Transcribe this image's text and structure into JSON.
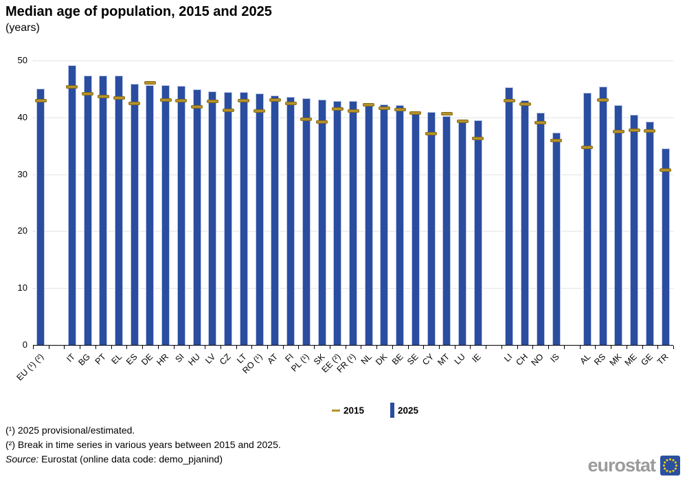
{
  "header": {
    "title": "Median age of population, 2015 and 2025",
    "subtitle": "(years)"
  },
  "legend": {
    "item_2015": "2015",
    "item_2025": "2025"
  },
  "footnotes": {
    "note1": "(¹) 2025 provisional/estimated.",
    "note2": "(²) Break in time series in various years between 2015 and 2025.",
    "source_label": "Source:",
    "source_text": " Eurostat (online data code: demo_pjanind)"
  },
  "logo": {
    "text": "eurostat"
  },
  "colors": {
    "bar": "#2a4da0",
    "bar_edge": "#bcc7e6",
    "marker": "#b5922b",
    "marker_edge": "#85691a",
    "grid": "#c9c9c9",
    "axis": "#000000",
    "logo_text": "#9b9b9d",
    "flag_blue": "#2b50a0",
    "flag_star": "#ffd200"
  },
  "chart_data": {
    "type": "bar",
    "title": "Median age of population, 2015 and 2025",
    "unit": "years",
    "xlabel": "",
    "ylabel": "",
    "ylim": [
      0,
      50
    ],
    "yticks": [
      0,
      10,
      20,
      30,
      40,
      50
    ],
    "grid": "horizontal-dotted",
    "legend_position": "bottom-center",
    "series": [
      {
        "name": "2015",
        "style": "gold-dash-marker"
      },
      {
        "name": "2025",
        "style": "blue-column"
      }
    ],
    "categories": [
      {
        "label": "EU (¹) (²)",
        "gap_before": 0,
        "y2015": 42.9,
        "y2025": 45.0
      },
      {
        "label": "IT",
        "gap_before": 1,
        "y2015": 45.3,
        "y2025": 49.1
      },
      {
        "label": "BG",
        "gap_before": 0,
        "y2015": 44.2,
        "y2025": 47.4
      },
      {
        "label": "PT",
        "gap_before": 0,
        "y2015": 43.7,
        "y2025": 47.4
      },
      {
        "label": "EL",
        "gap_before": 0,
        "y2015": 43.4,
        "y2025": 47.3
      },
      {
        "label": "ES",
        "gap_before": 0,
        "y2015": 42.4,
        "y2025": 45.9
      },
      {
        "label": "DE",
        "gap_before": 0,
        "y2015": 46.1,
        "y2025": 45.6
      },
      {
        "label": "HR",
        "gap_before": 0,
        "y2015": 43.1,
        "y2025": 45.6
      },
      {
        "label": "SI",
        "gap_before": 0,
        "y2015": 42.9,
        "y2025": 45.5
      },
      {
        "label": "HU",
        "gap_before": 0,
        "y2015": 41.8,
        "y2025": 44.9
      },
      {
        "label": "LV",
        "gap_before": 0,
        "y2015": 42.8,
        "y2025": 44.6
      },
      {
        "label": "CZ",
        "gap_before": 0,
        "y2015": 41.2,
        "y2025": 44.5
      },
      {
        "label": "LT",
        "gap_before": 0,
        "y2015": 42.9,
        "y2025": 44.4
      },
      {
        "label": "RO (¹)",
        "gap_before": 0,
        "y2015": 41.1,
        "y2025": 44.2
      },
      {
        "label": "AT",
        "gap_before": 0,
        "y2015": 43.0,
        "y2025": 43.9
      },
      {
        "label": "FI",
        "gap_before": 0,
        "y2015": 42.5,
        "y2025": 43.6
      },
      {
        "label": "PL (¹)",
        "gap_before": 0,
        "y2015": 39.7,
        "y2025": 43.4
      },
      {
        "label": "SK",
        "gap_before": 0,
        "y2015": 39.2,
        "y2025": 43.1
      },
      {
        "label": "EE (²)",
        "gap_before": 0,
        "y2015": 41.5,
        "y2025": 42.9
      },
      {
        "label": "FR (¹)",
        "gap_before": 0,
        "y2015": 41.1,
        "y2025": 42.9
      },
      {
        "label": "NL",
        "gap_before": 0,
        "y2015": 42.2,
        "y2025": 42.5
      },
      {
        "label": "DK",
        "gap_before": 0,
        "y2015": 41.6,
        "y2025": 42.3
      },
      {
        "label": "BE",
        "gap_before": 0,
        "y2015": 41.4,
        "y2025": 42.1
      },
      {
        "label": "SE",
        "gap_before": 0,
        "y2015": 40.8,
        "y2025": 41.1
      },
      {
        "label": "CY",
        "gap_before": 0,
        "y2015": 37.1,
        "y2025": 41.0
      },
      {
        "label": "MT",
        "gap_before": 0,
        "y2015": 40.7,
        "y2025": 40.2
      },
      {
        "label": "LU",
        "gap_before": 0,
        "y2015": 39.3,
        "y2025": 39.6
      },
      {
        "label": "IE",
        "gap_before": 0,
        "y2015": 36.3,
        "y2025": 39.5
      },
      {
        "label": "LI",
        "gap_before": 1,
        "y2015": 42.9,
        "y2025": 45.3
      },
      {
        "label": "CH",
        "gap_before": 0,
        "y2015": 42.3,
        "y2025": 43.0
      },
      {
        "label": "NO",
        "gap_before": 0,
        "y2015": 39.1,
        "y2025": 40.8
      },
      {
        "label": "IS",
        "gap_before": 0,
        "y2015": 35.9,
        "y2025": 37.3
      },
      {
        "label": "AL",
        "gap_before": 1,
        "y2015": 34.7,
        "y2025": 44.3
      },
      {
        "label": "RS",
        "gap_before": 0,
        "y2015": 43.1,
        "y2025": 45.4
      },
      {
        "label": "MK",
        "gap_before": 0,
        "y2015": 37.5,
        "y2025": 42.1
      },
      {
        "label": "ME",
        "gap_before": 0,
        "y2015": 37.8,
        "y2025": 40.5
      },
      {
        "label": "GE",
        "gap_before": 0,
        "y2015": 37.6,
        "y2025": 39.2
      },
      {
        "label": "TR",
        "gap_before": 0,
        "y2015": 30.7,
        "y2025": 34.5
      }
    ]
  }
}
